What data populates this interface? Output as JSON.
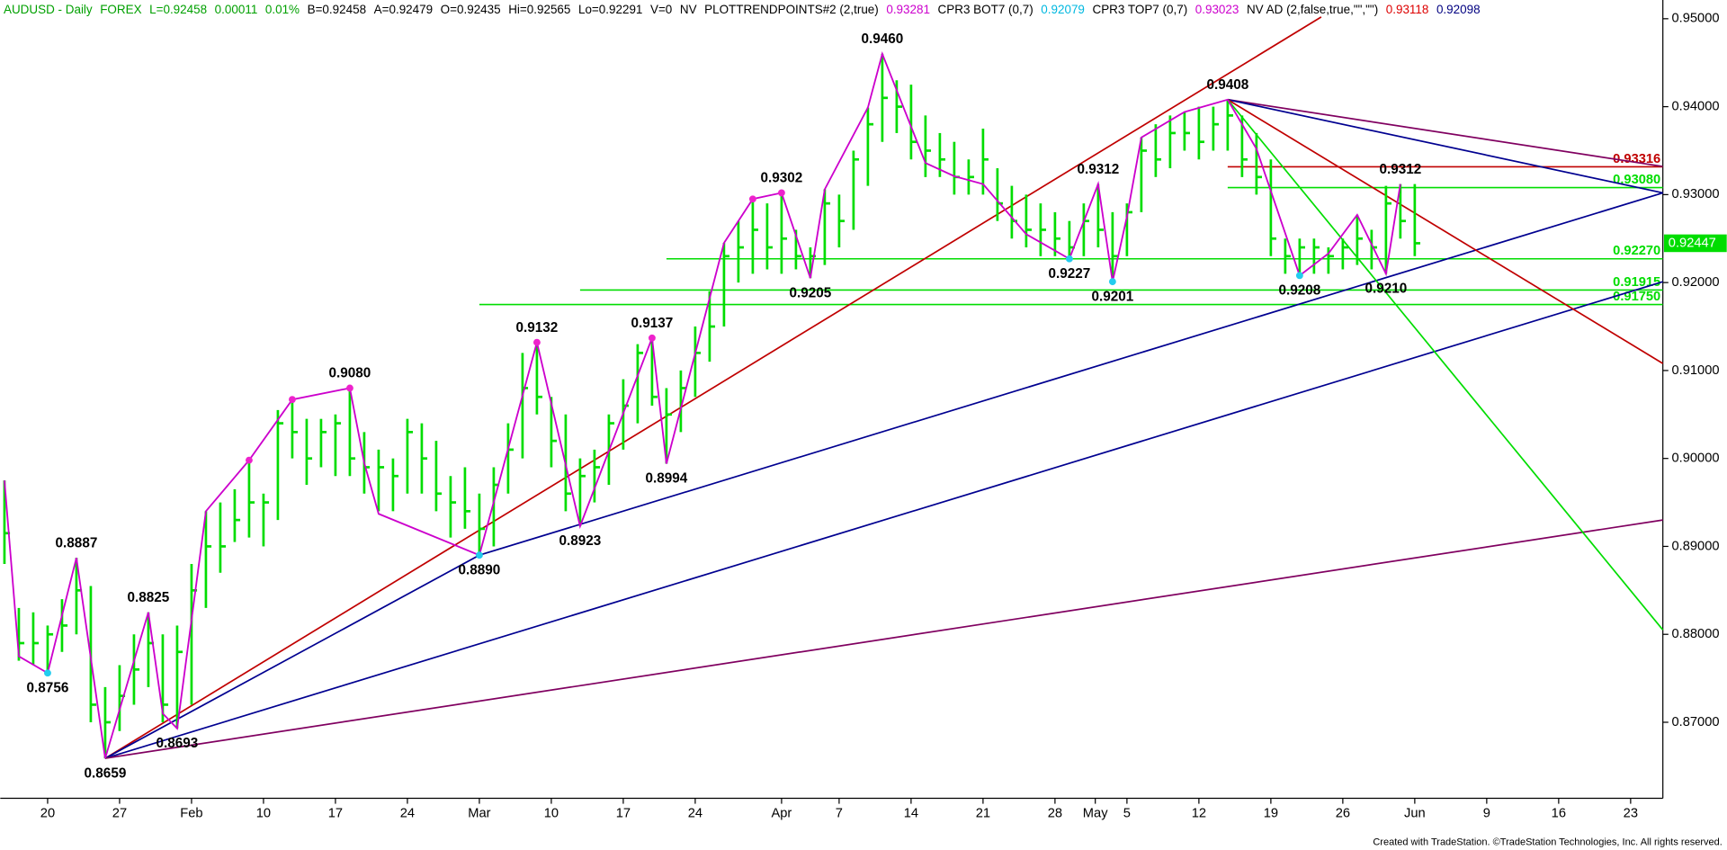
{
  "chart_data": {
    "type": "ohlc",
    "header": [
      {
        "text": "AUDUSD - Daily",
        "color": "#00a000"
      },
      {
        "text": "FOREX",
        "color": "#00a000"
      },
      {
        "text": "L=0.92458",
        "color": "#00a000"
      },
      {
        "text": "0.00011",
        "color": "#00a000"
      },
      {
        "text": "0.01%",
        "color": "#00a000"
      },
      {
        "text": "B=0.92458",
        "color": "#000000"
      },
      {
        "text": "A=0.92479",
        "color": "#000000"
      },
      {
        "text": "O=0.92435",
        "color": "#000000"
      },
      {
        "text": "Hi=0.92565",
        "color": "#000000"
      },
      {
        "text": "Lo=0.92291",
        "color": "#000000"
      },
      {
        "text": "V=0",
        "color": "#000000"
      },
      {
        "text": "NV",
        "color": "#000000"
      },
      {
        "text": "PLOTTRENDPOINTS#2 (2,true)",
        "color": "#000000"
      },
      {
        "text": "0.93281",
        "color": "#cc00cc"
      },
      {
        "text": "CPR3 BOT7 (0,7)",
        "color": "#000000"
      },
      {
        "text": "0.92079",
        "color": "#00b8e0"
      },
      {
        "text": "CPR3 TOP7 (0,7)",
        "color": "#000000"
      },
      {
        "text": "0.93023",
        "color": "#cc00cc"
      },
      {
        "text": "NV AD (2,false,true,\"\",\"\")",
        "color": "#000000"
      },
      {
        "text": "0.93118",
        "color": "#dd0000"
      },
      {
        "text": "0.92098",
        "color": "#000080"
      }
    ],
    "footer": "Created with TradeStation. ©TradeStation Technologies, Inc. All rights reserved.",
    "xlim": [
      -3.29,
      112.24
    ],
    "ylim": [
      0.86136,
      0.95213
    ],
    "xticks": [
      {
        "value": 0,
        "label": "20"
      },
      {
        "value": 5,
        "label": "27"
      },
      {
        "value": 10,
        "label": "Feb"
      },
      {
        "value": 15,
        "label": "10"
      },
      {
        "value": 20,
        "label": "17"
      },
      {
        "value": 25,
        "label": "24"
      },
      {
        "value": 30,
        "label": "Mar"
      },
      {
        "value": 35,
        "label": "10"
      },
      {
        "value": 40,
        "label": "17"
      },
      {
        "value": 45,
        "label": "24"
      },
      {
        "value": 51,
        "label": "Apr"
      },
      {
        "value": 55,
        "label": "7"
      },
      {
        "value": 60,
        "label": "14"
      },
      {
        "value": 65,
        "label": "21"
      },
      {
        "value": 70,
        "label": "28"
      },
      {
        "value": 72.8,
        "label": "May"
      },
      {
        "value": 75,
        "label": "5"
      },
      {
        "value": 80,
        "label": "12"
      },
      {
        "value": 85,
        "label": "19"
      },
      {
        "value": 90,
        "label": "26"
      },
      {
        "value": 95,
        "label": "Jun"
      },
      {
        "value": 100,
        "label": "9"
      },
      {
        "value": 105,
        "label": "16"
      },
      {
        "value": 110,
        "label": "23"
      }
    ],
    "yticks": [
      {
        "value": 0.87,
        "label": "0.87000"
      },
      {
        "value": 0.88,
        "label": "0.88000"
      },
      {
        "value": 0.89,
        "label": "0.89000"
      },
      {
        "value": 0.9,
        "label": "0.90000"
      },
      {
        "value": 0.91,
        "label": "0.91000"
      },
      {
        "value": 0.92,
        "label": "0.92000"
      },
      {
        "value": 0.93,
        "label": "0.93000"
      },
      {
        "value": 0.94,
        "label": "0.94000"
      },
      {
        "value": 0.95,
        "label": "0.95000"
      }
    ],
    "bar_color": "#00dd00",
    "x": [
      -3,
      -2,
      -1,
      0,
      1,
      2,
      3,
      4,
      5,
      6,
      7,
      8,
      9,
      10,
      11,
      12,
      13,
      14,
      15,
      16,
      17,
      18,
      19,
      20,
      21,
      22,
      23,
      24,
      25,
      26,
      27,
      28,
      29,
      30,
      31,
      32,
      33,
      34,
      35,
      36,
      37,
      38,
      39,
      40,
      41,
      42,
      43,
      44,
      45,
      46,
      47,
      48,
      49,
      50,
      51,
      52,
      53,
      54,
      55,
      56,
      57,
      58,
      59,
      60,
      61,
      62,
      63,
      64,
      65,
      66,
      67,
      68,
      69,
      70,
      71,
      72,
      73,
      74,
      75,
      76,
      77,
      78,
      79,
      80,
      81,
      82,
      83,
      84,
      85,
      86,
      87,
      88,
      89,
      90,
      91,
      92,
      93,
      94,
      95
    ],
    "high": [
      0.8975,
      0.883,
      0.8825,
      0.881,
      0.884,
      0.8887,
      0.8855,
      0.874,
      0.8765,
      0.88,
      0.8825,
      0.88,
      0.881,
      0.888,
      0.894,
      0.895,
      0.8965,
      0.8999,
      0.896,
      0.9055,
      0.9067,
      0.9045,
      0.9045,
      0.905,
      0.908,
      0.903,
      0.901,
      0.9,
      0.9045,
      0.904,
      0.902,
      0.898,
      0.899,
      0.896,
      0.899,
      0.904,
      0.912,
      0.9132,
      0.907,
      0.905,
      0.9,
      0.901,
      0.905,
      0.909,
      0.913,
      0.9137,
      0.908,
      0.91,
      0.915,
      0.919,
      0.9245,
      0.927,
      0.9295,
      0.929,
      0.9302,
      0.926,
      0.924,
      0.9306,
      0.93,
      0.935,
      0.9399,
      0.946,
      0.943,
      0.9425,
      0.939,
      0.937,
      0.936,
      0.934,
      0.9375,
      0.933,
      0.931,
      0.93,
      0.929,
      0.928,
      0.927,
      0.929,
      0.9312,
      0.928,
      0.929,
      0.9365,
      0.938,
      0.939,
      0.9394,
      0.94,
      0.94,
      0.9408,
      0.939,
      0.937,
      0.934,
      0.925,
      0.925,
      0.925,
      0.924,
      0.925,
      0.9277,
      0.926,
      0.931,
      0.9312,
      0.9312
    ],
    "low": [
      0.888,
      0.877,
      0.8765,
      0.8756,
      0.878,
      0.88,
      0.87,
      0.8659,
      0.869,
      0.872,
      0.874,
      0.87,
      0.8693,
      0.872,
      0.883,
      0.887,
      0.8905,
      0.891,
      0.89,
      0.893,
      0.9,
      0.897,
      0.899,
      0.898,
      0.898,
      0.896,
      0.894,
      0.894,
      0.896,
      0.896,
      0.894,
      0.891,
      0.892,
      0.889,
      0.89,
      0.896,
      0.9,
      0.905,
      0.899,
      0.894,
      0.8923,
      0.895,
      0.897,
      0.901,
      0.904,
      0.906,
      0.8994,
      0.903,
      0.907,
      0.911,
      0.915,
      0.92,
      0.921,
      0.9215,
      0.921,
      0.9215,
      0.9205,
      0.922,
      0.924,
      0.926,
      0.931,
      0.936,
      0.937,
      0.934,
      0.932,
      0.932,
      0.93,
      0.93,
      0.93,
      0.927,
      0.925,
      0.924,
      0.923,
      0.923,
      0.9227,
      0.923,
      0.924,
      0.9201,
      0.923,
      0.928,
      0.932,
      0.933,
      0.935,
      0.934,
      0.935,
      0.935,
      0.932,
      0.93,
      0.923,
      0.921,
      0.9208,
      0.921,
      0.921,
      0.9215,
      0.922,
      0.9215,
      0.921,
      0.925,
      0.923
    ],
    "close": [
      0.8915,
      0.879,
      0.879,
      0.88,
      0.881,
      0.885,
      0.872,
      0.87,
      0.873,
      0.876,
      0.879,
      0.872,
      0.878,
      0.885,
      0.89,
      0.89,
      0.893,
      0.895,
      0.895,
      0.904,
      0.903,
      0.9,
      0.903,
      0.904,
      0.9,
      0.899,
      0.899,
      0.898,
      0.903,
      0.9,
      0.896,
      0.895,
      0.894,
      0.892,
      0.897,
      0.901,
      0.908,
      0.907,
      0.902,
      0.896,
      0.898,
      0.899,
      0.904,
      0.906,
      0.912,
      0.907,
      0.905,
      0.908,
      0.912,
      0.915,
      0.923,
      0.924,
      0.926,
      0.924,
      0.925,
      0.923,
      0.923,
      0.929,
      0.927,
      0.934,
      0.938,
      0.941,
      0.94,
      0.936,
      0.935,
      0.934,
      0.932,
      0.932,
      0.934,
      0.929,
      0.927,
      0.926,
      0.926,
      0.925,
      0.924,
      0.927,
      0.926,
      0.923,
      0.928,
      0.935,
      0.934,
      0.937,
      0.937,
      0.936,
      0.938,
      0.939,
      0.934,
      0.932,
      0.925,
      0.923,
      0.924,
      0.924,
      0.923,
      0.924,
      0.925,
      0.924,
      0.929,
      0.927,
      0.92447
    ],
    "swing": {
      "color": "#cc00cc",
      "x": [
        -3,
        -2,
        0,
        2,
        4,
        7,
        8,
        9,
        11,
        14,
        17,
        21,
        22,
        23,
        30,
        34,
        37,
        42,
        43,
        47,
        49,
        51,
        53,
        54,
        57,
        58,
        61,
        63,
        65,
        68,
        71,
        73,
        74,
        75,
        76,
        79,
        82,
        84,
        87,
        89,
        91,
        93,
        94
      ],
      "values": [
        0.8975,
        0.8775,
        0.8756,
        0.8887,
        0.8659,
        0.8825,
        0.871,
        0.8693,
        0.894,
        0.8998,
        0.9067,
        0.908,
        0.8995,
        0.8937,
        0.889,
        0.9132,
        0.8923,
        0.9137,
        0.8994,
        0.9245,
        0.9295,
        0.9302,
        0.9205,
        0.9306,
        0.9399,
        0.946,
        0.9336,
        0.9321,
        0.9312,
        0.9255,
        0.9227,
        0.9312,
        0.9201,
        0.9275,
        0.9365,
        0.9394,
        0.9408,
        0.9352,
        0.9208,
        0.9233,
        0.9277,
        0.921,
        0.9312
      ],
      "value_labels": [
        null,
        null,
        "0.8756",
        "0.8887",
        "0.8659",
        "0.8825",
        null,
        "0.8693",
        null,
        null,
        null,
        "0.9080",
        null,
        null,
        "0.8890",
        "0.9132",
        "0.8923",
        "0.9137",
        "0.8994",
        null,
        null,
        "0.9302",
        "0.9205",
        null,
        null,
        "0.9460",
        null,
        null,
        null,
        null,
        "0.9227",
        "0.9312",
        "0.9201",
        null,
        null,
        null,
        "0.9408",
        null,
        "0.9208",
        null,
        null,
        "0.9210",
        "0.9312"
      ],
      "dot_colors": [
        null,
        null,
        "#22ccee",
        null,
        null,
        null,
        null,
        null,
        null,
        "#ee22cc",
        "#ee22cc",
        "#ee22cc",
        null,
        null,
        "#22ccee",
        "#ee22cc",
        null,
        "#ee22cc",
        null,
        null,
        "#ee22cc",
        "#ee22cc",
        null,
        null,
        null,
        null,
        null,
        null,
        null,
        null,
        "#22ccee",
        null,
        "#22ccee",
        null,
        null,
        null,
        null,
        null,
        "#22ccee",
        null,
        null,
        null,
        null
      ]
    },
    "trendlines": [
      {
        "color": "#c00000",
        "x": [
          4,
          88.5
        ],
        "values": [
          0.8659,
          0.9502
        ]
      },
      {
        "color": "#000090",
        "x": [
          4,
          30,
          112.24
        ],
        "values": [
          0.8659,
          0.889,
          0.9302
        ]
      },
      {
        "color": "#000090",
        "x": [
          4,
          112.24
        ],
        "values": [
          0.8659,
          0.9201
        ]
      },
      {
        "color": "#800060",
        "x": [
          4,
          112.24
        ],
        "values": [
          0.8659,
          0.893
        ]
      },
      {
        "color": "#800060",
        "x": [
          82,
          112.24
        ],
        "values": [
          0.9408,
          0.9332
        ]
      },
      {
        "color": "#000090",
        "x": [
          82,
          112.24
        ],
        "values": [
          0.9408,
          0.9302
        ]
      },
      {
        "color": "#c00000",
        "x": [
          82,
          112.24
        ],
        "values": [
          0.9408,
          0.9108
        ]
      },
      {
        "color": "#00dd00",
        "x": [
          82,
          112.24
        ],
        "values": [
          0.9408,
          0.8805
        ]
      }
    ],
    "levels": [
      {
        "value": 0.93316,
        "color": "#c00000",
        "x_start": 82
      },
      {
        "value": {
          "value": 0.9308,
          "label": "0.93080"
        },
        "color": "#00dd00",
        "x_start": 82
      },
      {
        "value": {
          "value": 0.9227,
          "label": "0.92270"
        },
        "color": "#00dd00",
        "x_start": 43
      },
      {
        "value": 0.91915,
        "color": "#00dd00",
        "x_start": 37
      },
      {
        "value": {
          "value": 0.9175,
          "label": "0.91750"
        },
        "color": "#00dd00",
        "x_start": 30
      }
    ],
    "last_price": 0.92447,
    "last_price_color": "#00dd00"
  }
}
